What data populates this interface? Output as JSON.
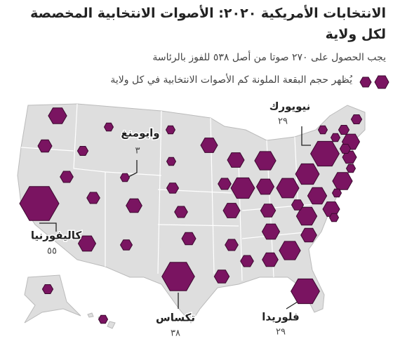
{
  "title": "الانتخابات الأمريكية ٢٠٢٠: الأصوات الانتخابية المخصصة لكل ولاية",
  "subtitle": "يجب الحصول على ٢٧٠ صوتا من أصل ٥٣٨ للفوز بالرئاسة",
  "legend": "يُظهر حجم البقعة الملونة كم الأصوات الانتخابية في كل ولاية",
  "color": "#7a1461",
  "callouts": [
    {
      "name": "كاليفورنيا",
      "value": 55,
      "value_label": "٥٥"
    },
    {
      "name": "تكساس",
      "value": 38,
      "value_label": "٣٨"
    },
    {
      "name": "فلوريدا",
      "value": 29,
      "value_label": "٢٩"
    },
    {
      "name": "نيويورك",
      "value": 29,
      "value_label": "٢٩"
    },
    {
      "name": "وايومنغ",
      "value": 3,
      "value_label": "٣"
    }
  ],
  "hexagons": {
    "values": [
      12,
      7,
      4,
      3,
      6,
      6,
      11,
      5,
      9,
      3,
      3,
      5,
      6,
      7,
      10,
      6,
      10,
      6,
      8,
      10,
      16,
      20,
      11,
      18,
      8,
      11,
      6,
      9,
      16,
      9,
      15,
      13,
      5,
      20,
      14,
      10,
      3,
      7,
      11,
      4,
      3,
      4,
      4,
      3,
      4,
      3,
      3,
      3
    ]
  }
}
